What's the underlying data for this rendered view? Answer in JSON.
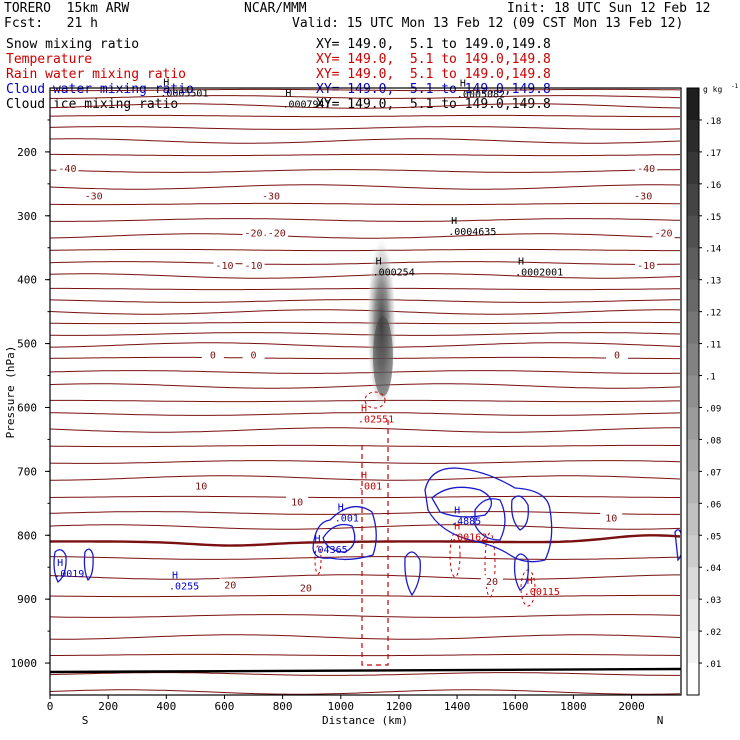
{
  "header": {
    "model": "TORERO  15km ARW",
    "org": "NCAR/MMM",
    "init": "Init: 18 UTC Sun 12 Feb 12",
    "fcst": "Fcst:   21 h",
    "valid": "Valid: 15 UTC Mon 13 Feb 12 (09 CST Mon 13 Feb 12)"
  },
  "legend": [
    {
      "label": "Snow mixing ratio",
      "xy": "XY= 149.0,  5.1 to 149.0,149.8",
      "color": "#000000"
    },
    {
      "label": "Temperature",
      "xy": "XY= 149.0,  5.1 to 149.0,149.8",
      "color": "#cc0000"
    },
    {
      "label": "Rain water mixing ratio",
      "xy": "XY= 149.0,  5.1 to 149.0,149.8",
      "color": "#cc0000"
    },
    {
      "label": "Cloud water mixing ratio",
      "xy": "XY= 149.0,  5.1 to 149.0,149.8",
      "color": "#0000cc"
    },
    {
      "label": "Cloud ice mixing ratio",
      "xy": "XY= 149.0,  5.1 to 149.0,149.8",
      "color": "#000000"
    }
  ],
  "chart_data": {
    "type": "cross-section",
    "xlabel": "Distance (km)",
    "ylabel": "Pressure (hPa)",
    "xlim": [
      0,
      2170
    ],
    "ylim": [
      1050,
      100
    ],
    "x_ticks": [
      0,
      200,
      400,
      600,
      800,
      1000,
      1200,
      1400,
      1600,
      1800,
      2000
    ],
    "y_ticks": [
      200,
      300,
      400,
      500,
      600,
      700,
      800,
      900,
      1000
    ],
    "end_labels": {
      "left": "S",
      "right": "N"
    },
    "colorbar": {
      "unit": "g kg",
      "unit_exp": "-1",
      "ticks": [
        ".18",
        ".17",
        ".16",
        ".15",
        ".14",
        ".13",
        ".12",
        ".11",
        ".1",
        ".09",
        ".08",
        ".07",
        ".06",
        ".05",
        ".04",
        ".03",
        ".02",
        ".01"
      ]
    },
    "temperature_contours": [
      {
        "label": "-40",
        "label_positions": [
          [
            60,
            228
          ],
          [
            2050,
            228
          ]
        ]
      },
      {
        "label": "-30",
        "label_positions": [
          [
            150,
            271
          ],
          [
            760,
            271
          ],
          [
            2040,
            271
          ]
        ]
      },
      {
        "label": "-20",
        "label_positions": [
          [
            700,
            329
          ],
          [
            780,
            329
          ],
          [
            2110,
            329
          ]
        ]
      },
      {
        "label": "-10",
        "label_positions": [
          [
            600,
            380
          ],
          [
            700,
            380
          ],
          [
            2050,
            380
          ]
        ]
      },
      {
        "label": "0",
        "label_positions": [
          [
            560,
            520
          ],
          [
            700,
            520
          ],
          [
            1950,
            520
          ]
        ]
      },
      {
        "label": "10",
        "label_positions": [
          [
            520,
            725
          ],
          [
            850,
            750
          ],
          [
            1930,
            775
          ]
        ]
      },
      {
        "label": "20",
        "label_positions": [
          [
            620,
            880
          ],
          [
            880,
            885
          ],
          [
            1520,
            875
          ]
        ]
      }
    ],
    "maxima": [
      {
        "label": ".0005501",
        "x": 400,
        "p": 110,
        "color": "#000000"
      },
      {
        "label": ".0007947",
        "x": 820,
        "p": 127,
        "color": "#000000"
      },
      {
        "label": ".0005082",
        "x": 1420,
        "p": 112,
        "color": "#000000"
      },
      {
        "label": ".0004635",
        "x": 1390,
        "p": 327,
        "color": "#000000"
      },
      {
        "label": ".000254",
        "x": 1130,
        "p": 390,
        "color": "#000000"
      },
      {
        "label": ".0002001",
        "x": 1620,
        "p": 390,
        "color": "#000000"
      },
      {
        "label": ".02551",
        "x": 1080,
        "p": 620,
        "color": "#cc0000"
      },
      {
        "label": ".001",
        "x": 1080,
        "p": 725,
        "color": "#cc0000"
      },
      {
        "label": ".00162",
        "x": 1400,
        "p": 805,
        "color": "#cc0000"
      },
      {
        "label": ".00115",
        "x": 1650,
        "p": 890,
        "color": "#cc0000"
      },
      {
        "label": ".001",
        "x": 1000,
        "p": 775,
        "color": "#0000cc"
      },
      {
        "label": ".4885",
        "x": 1400,
        "p": 780,
        "color": "#0000cc"
      },
      {
        "label": ".04365",
        "x": 920,
        "p": 825,
        "color": "#0000cc"
      },
      {
        "label": ".0255",
        "x": 430,
        "p": 882,
        "color": "#0000cc"
      },
      {
        "label": ".0019",
        "x": 35,
        "p": 862,
        "color": "#0000cc"
      }
    ]
  }
}
